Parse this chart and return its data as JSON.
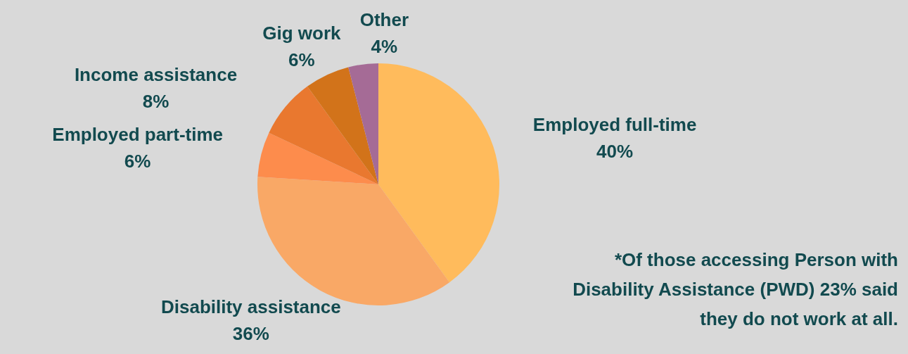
{
  "chart_data": {
    "type": "pie",
    "categories": [
      "Employed full-time",
      "Disability assistance",
      "Employed part-time",
      "Income assistance",
      "Gig work",
      "Other"
    ],
    "values": [
      40,
      36,
      6,
      8,
      6,
      4
    ],
    "value_labels": [
      "40%",
      "36%",
      "6%",
      "8%",
      "6%",
      "4%"
    ],
    "colors": [
      "#ffbb5c",
      "#f9a866",
      "#fd8c4c",
      "#e9782f",
      "#d2731a",
      "#a56b96"
    ],
    "annotations": [
      "*Of those accessing Person with Disability Assistance (PWD) 23% said they do not work at all."
    ]
  }
}
